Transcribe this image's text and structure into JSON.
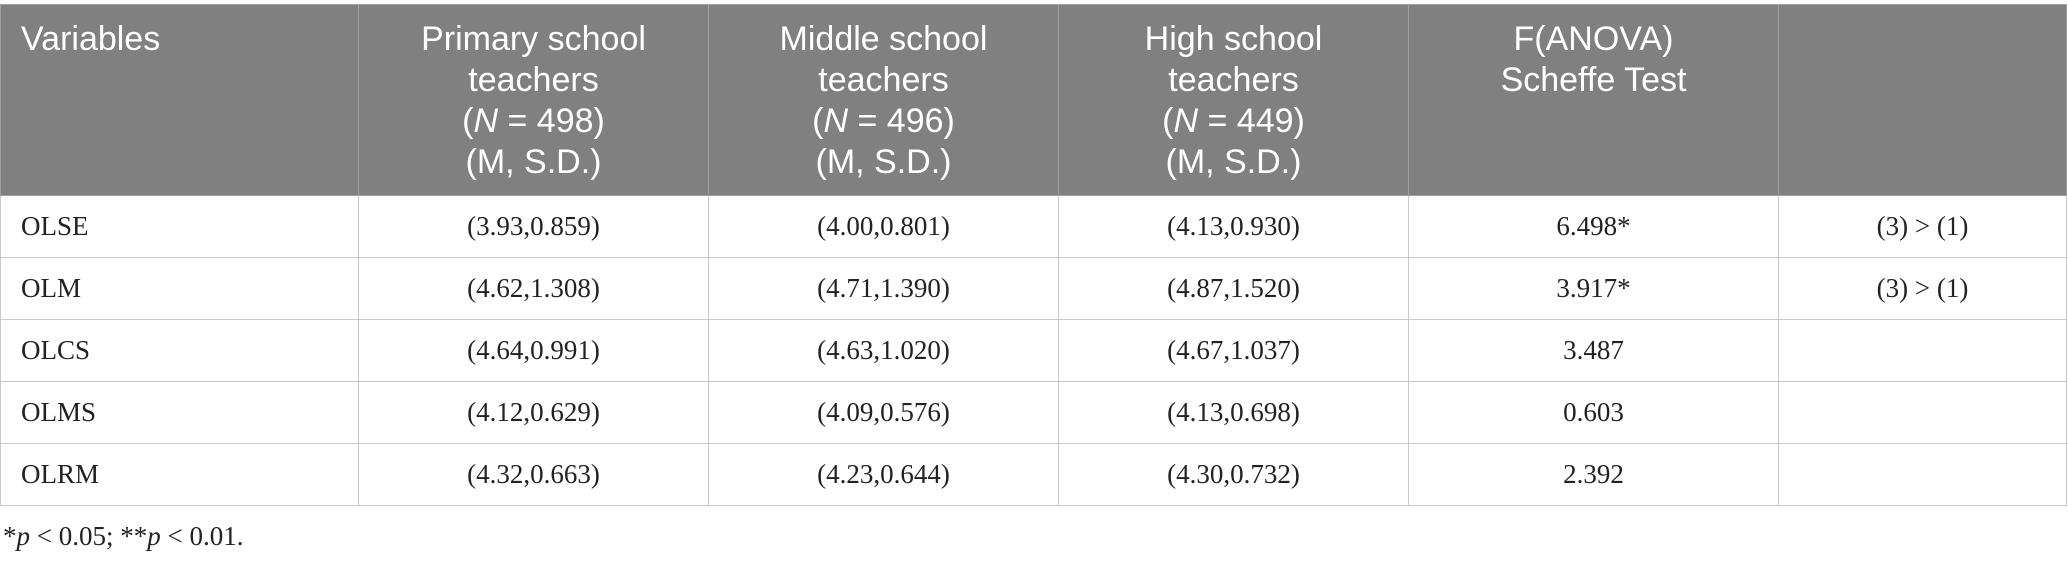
{
  "header": {
    "variables": "Variables",
    "col1": {
      "line1": "Primary school",
      "line2": "teachers",
      "n_label": "N",
      "n_value": " = 498)",
      "stats": "(M, S.D.)"
    },
    "col2": {
      "line1": "Middle school",
      "line2": "teachers",
      "n_label": "N",
      "n_value": " = 496)",
      "stats": "(M, S.D.)"
    },
    "col3": {
      "line1": "High school",
      "line2": "teachers",
      "n_label": "N",
      "n_value": " = 449)",
      "stats": "(M, S.D.)"
    },
    "col4": {
      "line1": "F(ANOVA)",
      "line2": "Scheffe Test"
    },
    "col5": ""
  },
  "rows": [
    {
      "variable": "OLSE",
      "primary": "(3.93,0.859)",
      "middle": "(4.00,0.801)",
      "high": "(4.13,0.930)",
      "f": "6.498*",
      "scheffe": "(3) > (1)"
    },
    {
      "variable": "OLM",
      "primary": "(4.62,1.308)",
      "middle": "(4.71,1.390)",
      "high": "(4.87,1.520)",
      "f": "3.917*",
      "scheffe": "(3) > (1)"
    },
    {
      "variable": "OLCS",
      "primary": "(4.64,0.991)",
      "middle": "(4.63,1.020)",
      "high": "(4.67,1.037)",
      "f": "3.487",
      "scheffe": ""
    },
    {
      "variable": "OLMS",
      "primary": "(4.12,0.629)",
      "middle": "(4.09,0.576)",
      "high": "(4.13,0.698)",
      "f": "0.603",
      "scheffe": ""
    },
    {
      "variable": "OLRM",
      "primary": "(4.32,0.663)",
      "middle": "(4.23,0.644)",
      "high": "(4.30,0.732)",
      "f": "2.392",
      "scheffe": ""
    }
  ],
  "footnote": {
    "star1": "*",
    "p1": "p",
    "text1": " < 0.05; **",
    "p2": "p",
    "text2": " < 0.01."
  }
}
